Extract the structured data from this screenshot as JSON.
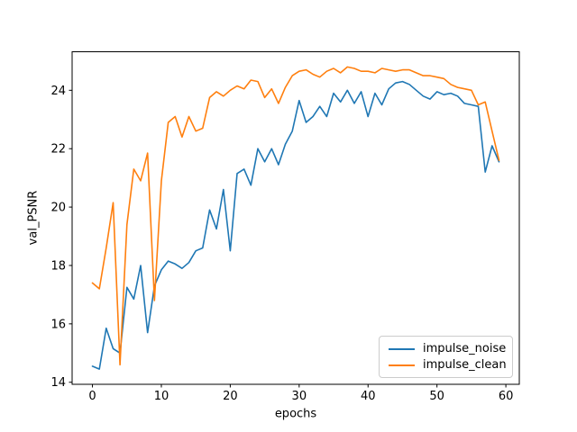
{
  "figure": {
    "background": "#ffffff",
    "xlabel": "epochs",
    "ylabel": "val_PSNR"
  },
  "legend": {
    "position": "lower right",
    "entries": [
      {
        "label": "impulse_noise",
        "color": "#1f77b4"
      },
      {
        "label": "impulse_clean",
        "color": "#ff7f0e"
      }
    ]
  },
  "chart_data": {
    "type": "line",
    "xlabel": "epochs",
    "ylabel": "val_PSNR",
    "grid": false,
    "legend_position": "lower right",
    "xlim": [
      -2.95,
      61.95
    ],
    "ylim": [
      13.93,
      25.32
    ],
    "x_ticks": [
      0,
      10,
      20,
      30,
      40,
      50,
      60
    ],
    "y_ticks": [
      14,
      16,
      18,
      20,
      22,
      24
    ],
    "x_start": 0,
    "x_step": 1,
    "series": [
      {
        "name": "impulse_noise",
        "color": "#1f77b4",
        "values": [
          14.55,
          14.45,
          15.85,
          15.15,
          15.0,
          17.25,
          16.85,
          18.0,
          15.7,
          17.3,
          17.85,
          18.15,
          18.05,
          17.9,
          18.1,
          18.5,
          18.6,
          19.9,
          19.25,
          20.6,
          18.5,
          21.15,
          21.3,
          20.75,
          22.0,
          21.55,
          22.0,
          21.45,
          22.15,
          22.6,
          23.65,
          22.9,
          23.1,
          23.45,
          23.1,
          23.9,
          23.6,
          24.0,
          23.55,
          23.95,
          23.1,
          23.9,
          23.5,
          24.05,
          24.25,
          24.3,
          24.2,
          24.0,
          23.8,
          23.7,
          23.95,
          23.85,
          23.9,
          23.8,
          23.55,
          23.5,
          23.45,
          21.2,
          22.1,
          21.55
        ]
      },
      {
        "name": "impulse_clean",
        "color": "#ff7f0e",
        "values": [
          17.4,
          17.2,
          18.6,
          20.15,
          14.6,
          19.4,
          21.3,
          20.9,
          21.85,
          16.8,
          20.9,
          22.9,
          23.1,
          22.4,
          23.1,
          22.6,
          22.7,
          23.75,
          23.95,
          23.8,
          24.0,
          24.15,
          24.05,
          24.35,
          24.3,
          23.75,
          24.05,
          23.55,
          24.1,
          24.5,
          24.65,
          24.7,
          24.55,
          24.45,
          24.65,
          24.75,
          24.6,
          24.8,
          24.75,
          24.65,
          24.65,
          24.6,
          24.75,
          24.7,
          24.65,
          24.7,
          24.7,
          24.6,
          24.5,
          24.5,
          24.45,
          24.4,
          24.2,
          24.1,
          24.05,
          24.0,
          23.5,
          23.6,
          22.6,
          21.6
        ]
      }
    ]
  }
}
